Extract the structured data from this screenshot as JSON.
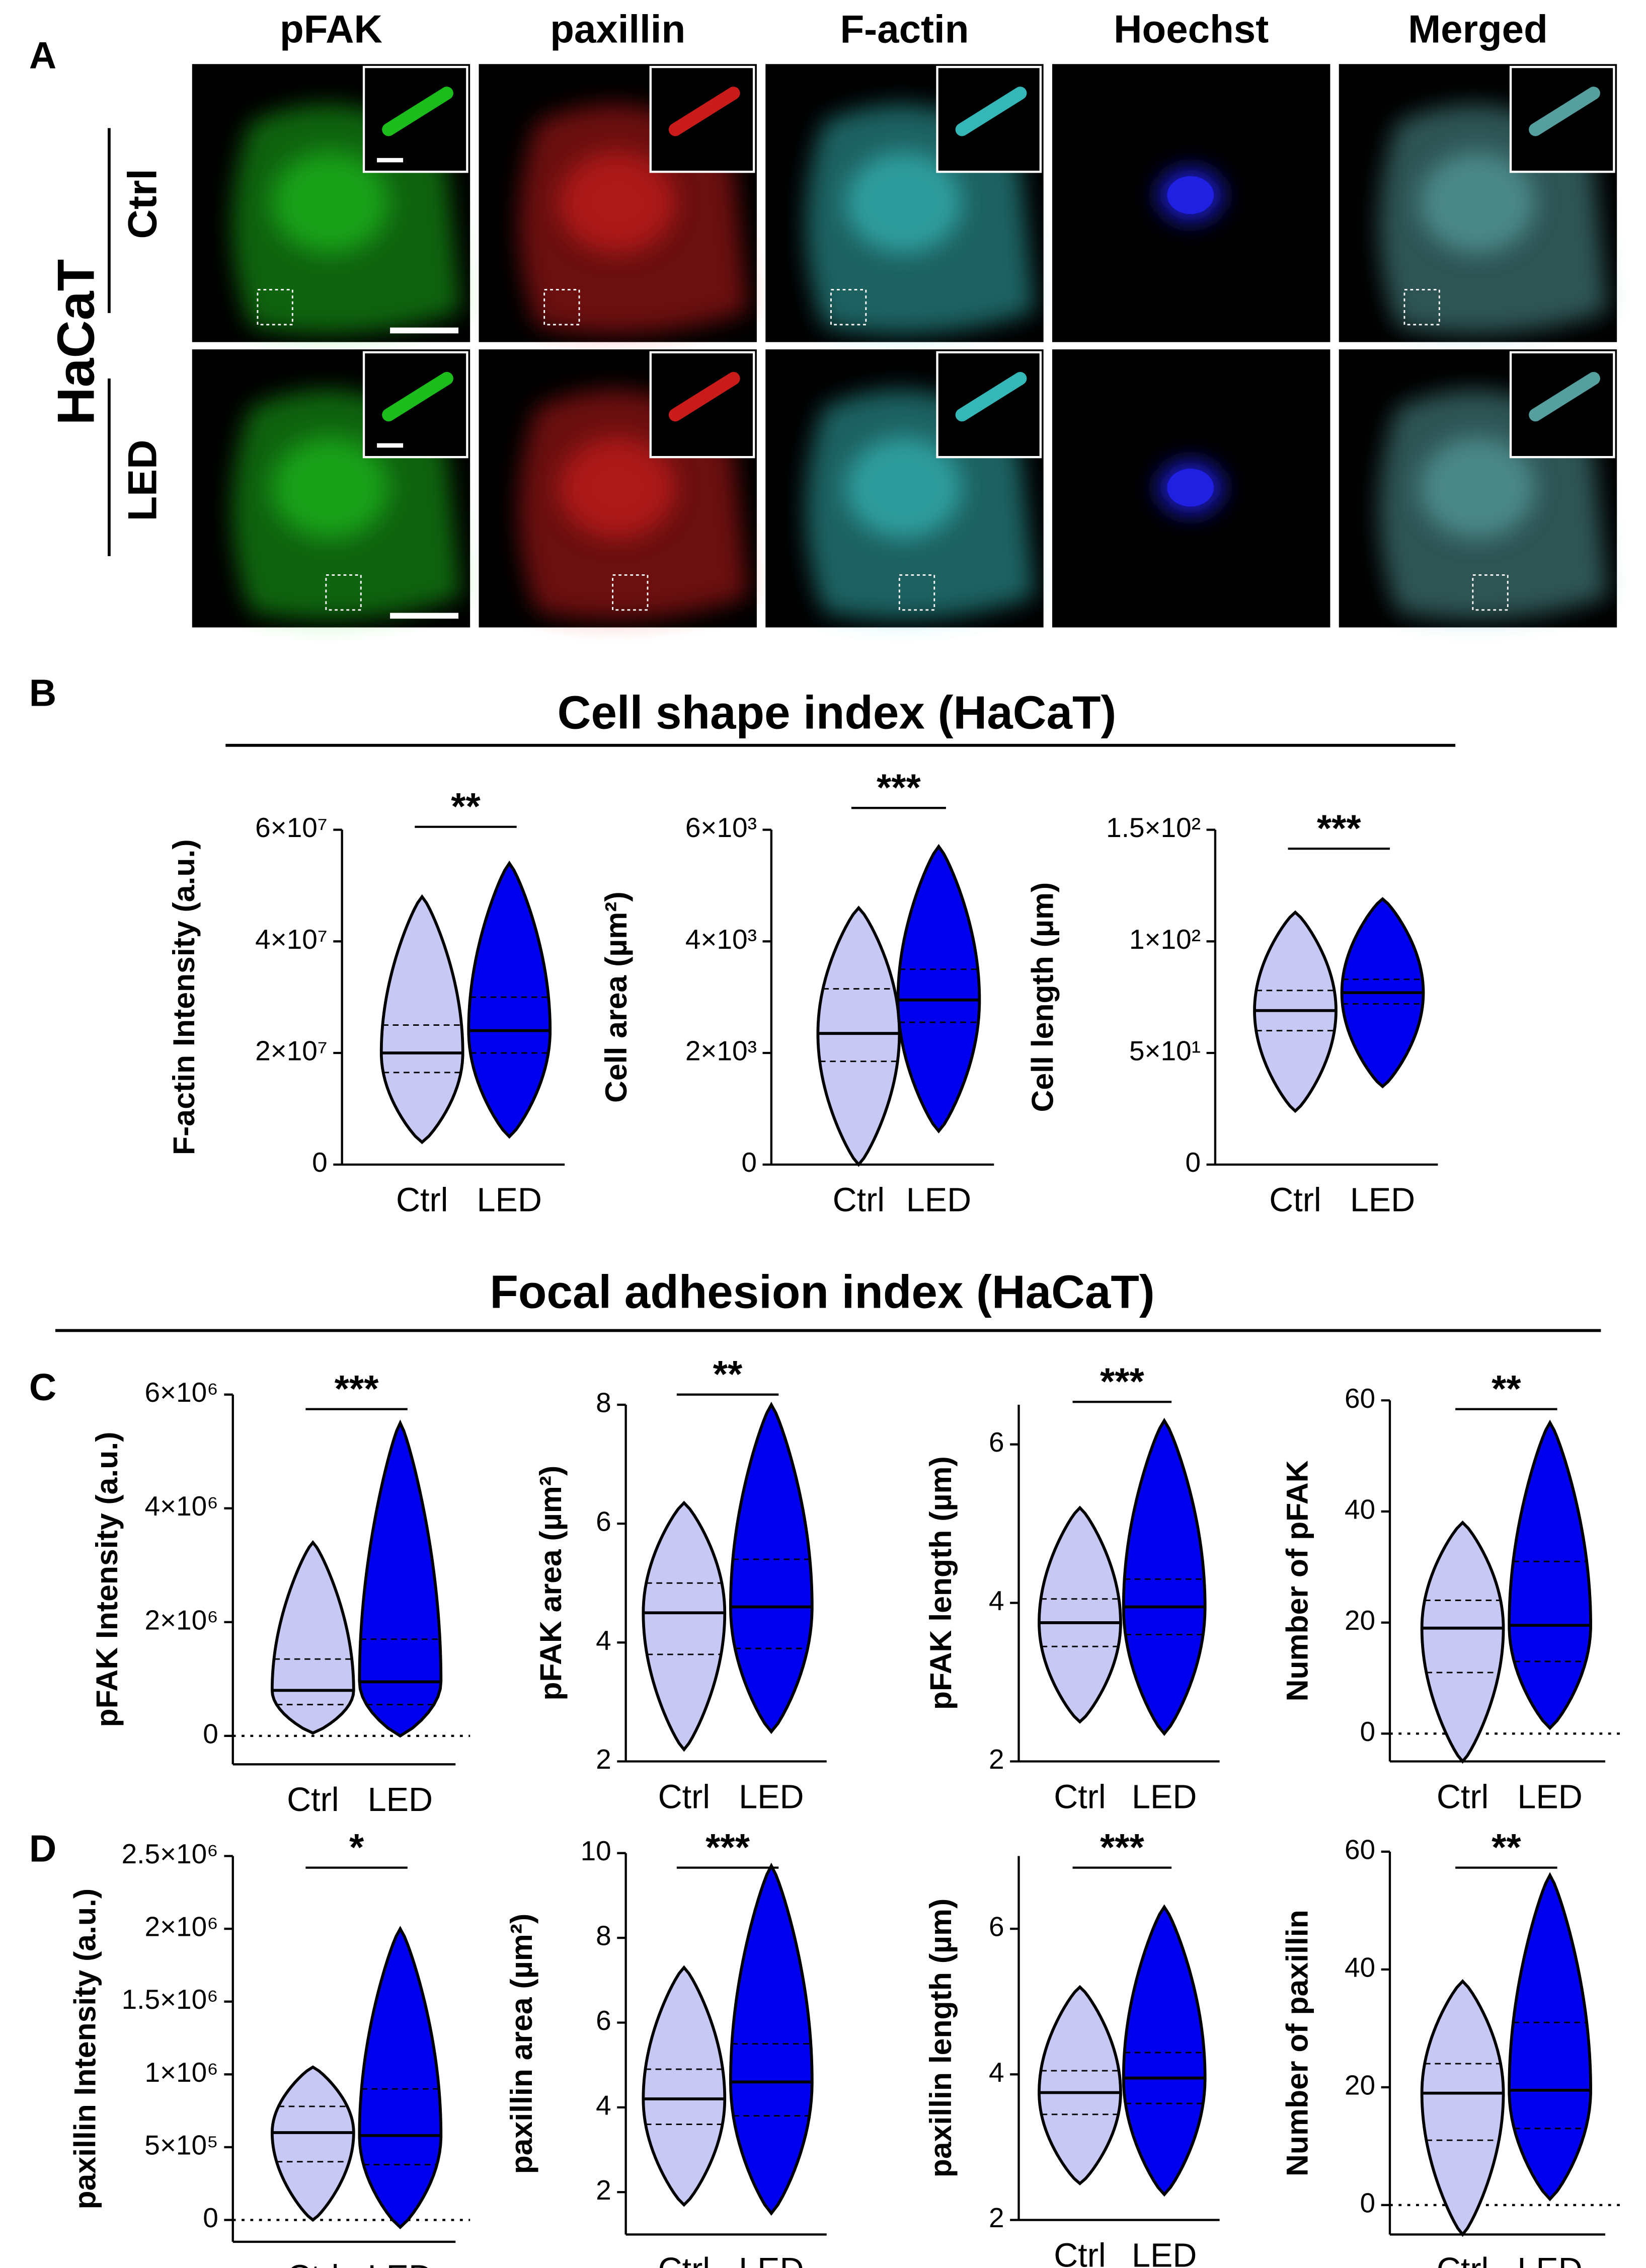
{
  "figure": {
    "panel_labels": [
      "A",
      "B",
      "C",
      "D"
    ],
    "cell_line": "HaCaT",
    "rows": [
      "Ctrl",
      "LED"
    ],
    "columns": [
      {
        "name": "pFAK",
        "color": "#22cc22"
      },
      {
        "name": "paxillin",
        "color": "#ee1111"
      },
      {
        "name": "F-actin",
        "color": "#22aadd"
      },
      {
        "name": "Hoechst",
        "color": "#1111dd"
      },
      {
        "name": "Merged",
        "color": "#000000"
      }
    ],
    "section_titles": [
      "Cell shape index (HaCaT)",
      "Focal adhesion index (HaCaT)"
    ]
  },
  "chart_data": [
    {
      "type": "violin",
      "ylabel": "F-actin Intensity (a.u.)",
      "categories": [
        "Ctrl",
        "LED"
      ],
      "colors": [
        "#c8c8f5",
        "#0000ee"
      ],
      "significance": "**",
      "stats": {
        "min": [
          4000000,
          5000000
        ],
        "q1": [
          16500000,
          20000000
        ],
        "median": [
          20000000,
          24000000
        ],
        "q3": [
          25000000,
          30000000
        ],
        "max": [
          48000000,
          54000000
        ]
      },
      "ylim": [
        0,
        60000000
      ],
      "yticks": [
        0,
        {
          "value": 20000000,
          "label": "2×10⁷"
        },
        {
          "value": 40000000,
          "label": "4×10⁷"
        },
        {
          "value": 60000000,
          "label": "6×10⁷"
        }
      ],
      "zero_line": false
    },
    {
      "type": "violin",
      "ylabel": "Cell area (µm²)",
      "categories": [
        "Ctrl",
        "LED"
      ],
      "colors": [
        "#c8c8f5",
        "#0000ee"
      ],
      "significance": "***",
      "stats": {
        "min": [
          0,
          600
        ],
        "q1": [
          1850,
          2550
        ],
        "median": [
          2350,
          2950
        ],
        "q3": [
          3150,
          3500
        ],
        "max": [
          4600,
          5700
        ]
      },
      "ylim": [
        0,
        6000
      ],
      "yticks": [
        0,
        {
          "value": 2000,
          "label": "2×10³"
        },
        {
          "value": 4000,
          "label": "4×10³"
        },
        {
          "value": 6000,
          "label": "6×10³"
        }
      ],
      "zero_line": false
    },
    {
      "type": "violin",
      "ylabel": "Cell length (µm)",
      "categories": [
        "Ctrl",
        "LED"
      ],
      "colors": [
        "#c8c8f5",
        "#0000ee"
      ],
      "significance": "***",
      "stats": {
        "min": [
          24,
          35
        ],
        "q1": [
          60,
          72
        ],
        "median": [
          69,
          77
        ],
        "q3": [
          78,
          83
        ],
        "max": [
          113,
          119
        ]
      },
      "ylim": [
        0,
        150
      ],
      "yticks": [
        0,
        {
          "value": 50,
          "label": "5×10¹"
        },
        {
          "value": 100,
          "label": "1×10²"
        },
        {
          "value": 150,
          "label": "1.5×10²"
        }
      ],
      "zero_line": false
    },
    {
      "type": "violin",
      "ylabel": "pFAK Intensity (a.u.)",
      "categories": [
        "Ctrl",
        "LED"
      ],
      "colors": [
        "#c8c8f5",
        "#0000ee"
      ],
      "significance": "***",
      "stats": {
        "min": [
          50000,
          0
        ],
        "q1": [
          550000,
          550000
        ],
        "median": [
          800000,
          950000
        ],
        "q3": [
          1350000,
          1700000
        ],
        "max": [
          3400000,
          5500000
        ]
      },
      "ylim": [
        -500000,
        6000000
      ],
      "yticks": [
        0,
        {
          "value": 2000000,
          "label": "2×10⁶"
        },
        {
          "value": 4000000,
          "label": "4×10⁶"
        },
        {
          "value": 6000000,
          "label": "6×10⁶"
        }
      ],
      "zero_line": true
    },
    {
      "type": "violin",
      "ylabel": "pFAK area (µm²)",
      "categories": [
        "Ctrl",
        "LED"
      ],
      "colors": [
        "#c8c8f5",
        "#0000ee"
      ],
      "significance": "**",
      "stats": {
        "min": [
          2.2,
          2.5
        ],
        "q1": [
          3.8,
          3.9
        ],
        "median": [
          4.5,
          4.6
        ],
        "q3": [
          5.0,
          5.4
        ],
        "max": [
          6.35,
          8.0
        ]
      },
      "ylim": [
        2,
        8
      ],
      "yticks": [
        2,
        4,
        6,
        8
      ],
      "zero_line": false
    },
    {
      "type": "violin",
      "ylabel": "pFAK length (µm)",
      "categories": [
        "Ctrl",
        "LED"
      ],
      "colors": [
        "#c8c8f5",
        "#0000ee"
      ],
      "significance": "***",
      "stats": {
        "min": [
          2.5,
          2.35
        ],
        "q1": [
          3.45,
          3.6
        ],
        "median": [
          3.75,
          3.95
        ],
        "q3": [
          4.05,
          4.3
        ],
        "max": [
          5.2,
          6.3
        ]
      },
      "ylim": [
        2,
        6.5
      ],
      "yticks": [
        2,
        4,
        6
      ],
      "zero_line": false
    },
    {
      "type": "violin",
      "ylabel": "Number of pFAK",
      "categories": [
        "Ctrl",
        "LED"
      ],
      "colors": [
        "#c8c8f5",
        "#0000ee"
      ],
      "significance": "**",
      "stats": {
        "min": [
          -5,
          1
        ],
        "q1": [
          11,
          13
        ],
        "median": [
          19,
          19.5
        ],
        "q3": [
          24,
          31
        ],
        "max": [
          38,
          56
        ]
      },
      "ylim": [
        -5,
        60
      ],
      "yticks": [
        0,
        20,
        40,
        60
      ],
      "zero_line": true
    },
    {
      "type": "violin",
      "ylabel": "paxillin Intensity (a.u.)",
      "categories": [
        "Ctrl",
        "LED"
      ],
      "colors": [
        "#c8c8f5",
        "#0000ee"
      ],
      "significance": "*",
      "stats": {
        "min": [
          0,
          -50000
        ],
        "q1": [
          400000,
          380000
        ],
        "median": [
          600000,
          580000
        ],
        "q3": [
          780000,
          900000
        ],
        "max": [
          1050000,
          2000000
        ]
      },
      "ylim": [
        -150000,
        2500000
      ],
      "yticks": [
        0,
        {
          "value": 500000,
          "label": "5×10⁵"
        },
        {
          "value": 1000000,
          "label": "1×10⁶"
        },
        {
          "value": 1500000,
          "label": "1.5×10⁶"
        },
        {
          "value": 2000000,
          "label": "2×10⁶"
        },
        {
          "value": 2500000,
          "label": "2.5×10⁶"
        }
      ],
      "zero_line": true
    },
    {
      "type": "violin",
      "ylabel": "paxillin area (µm²)",
      "categories": [
        "Ctrl",
        "LED"
      ],
      "colors": [
        "#c8c8f5",
        "#0000ee"
      ],
      "significance": "***",
      "stats": {
        "min": [
          1.7,
          1.5
        ],
        "q1": [
          3.6,
          3.8
        ],
        "median": [
          4.2,
          4.6
        ],
        "q3": [
          4.9,
          5.5
        ],
        "max": [
          7.3,
          9.7
        ]
      },
      "ylim": [
        1,
        10
      ],
      "yticks": [
        2,
        4,
        6,
        8,
        10
      ],
      "zero_line": false
    },
    {
      "type": "violin",
      "ylabel": "paxillin length (µm)",
      "categories": [
        "Ctrl",
        "LED"
      ],
      "colors": [
        "#c8c8f5",
        "#0000ee"
      ],
      "significance": "***",
      "stats": {
        "min": [
          2.5,
          2.35
        ],
        "q1": [
          3.45,
          3.6
        ],
        "median": [
          3.75,
          3.95
        ],
        "q3": [
          4.05,
          4.3
        ],
        "max": [
          5.2,
          6.3
        ]
      },
      "ylim": [
        2,
        7
      ],
      "yticks": [
        2,
        4,
        6
      ],
      "zero_line": false
    },
    {
      "type": "violin",
      "ylabel": "Number of paxillin",
      "categories": [
        "Ctrl",
        "LED"
      ],
      "colors": [
        "#c8c8f5",
        "#0000ee"
      ],
      "significance": "**",
      "stats": {
        "min": [
          -5,
          1
        ],
        "q1": [
          11,
          13
        ],
        "median": [
          19,
          19.5
        ],
        "q3": [
          24,
          31
        ],
        "max": [
          38,
          56
        ]
      },
      "ylim": [
        -5,
        60
      ],
      "yticks": [
        0,
        20,
        40,
        60
      ],
      "zero_line": true
    }
  ]
}
